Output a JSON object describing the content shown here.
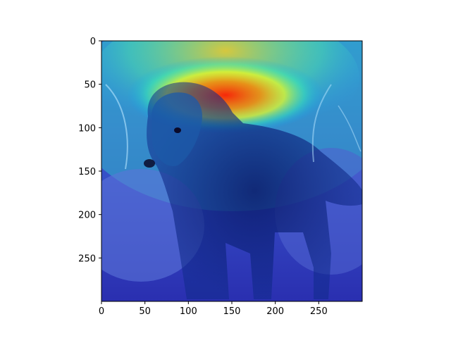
{
  "figure": {
    "image_subject": "dog",
    "overlay": "attention heatmap",
    "colormap": "jet",
    "axes": {
      "x_ticks": [
        {
          "value": 0,
          "label": "0"
        },
        {
          "value": 50,
          "label": "50"
        },
        {
          "value": 100,
          "label": "100"
        },
        {
          "value": 150,
          "label": "150"
        },
        {
          "value": 200,
          "label": "200"
        },
        {
          "value": 250,
          "label": "250"
        }
      ],
      "y_ticks": [
        {
          "value": 0,
          "label": "0"
        },
        {
          "value": 50,
          "label": "50"
        },
        {
          "value": 100,
          "label": "100"
        },
        {
          "value": 150,
          "label": "150"
        },
        {
          "value": 200,
          "label": "200"
        },
        {
          "value": 250,
          "label": "250"
        }
      ],
      "xlim": [
        0,
        300
      ],
      "ylim": [
        300,
        0
      ]
    }
  }
}
